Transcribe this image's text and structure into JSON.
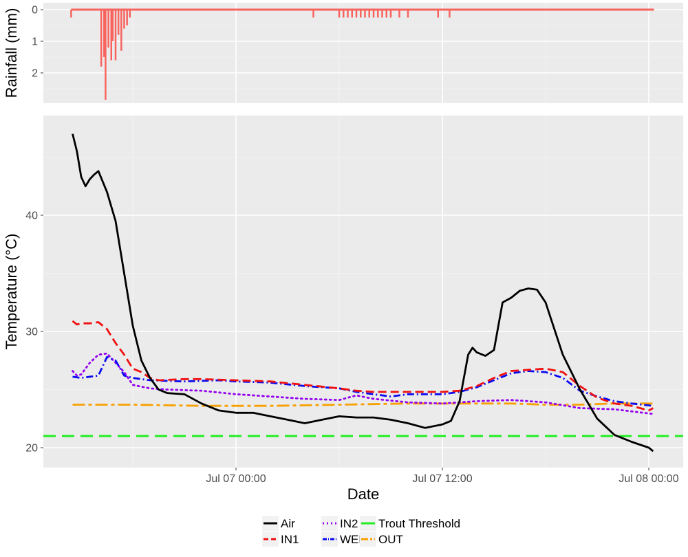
{
  "chart_data": {
    "type": "line",
    "xlabel": "Date",
    "x_ticks": [
      "Jul 07 00:00",
      "Jul 07 12:00",
      "Jul 08 00:00"
    ],
    "rainfall": {
      "ylabel": "Rainfall (mm)",
      "ylim": [
        2.85,
        0
      ],
      "y_ticks": [
        "0",
        "1",
        "2"
      ],
      "y_tick_values": [
        0,
        1,
        2
      ],
      "color": "#F8635E",
      "events": [
        {
          "t": "07-06 14:25",
          "mm": 0.25
        },
        {
          "t": "07-06 16:10",
          "mm": 1.8
        },
        {
          "t": "07-06 16:20",
          "mm": 1.5
        },
        {
          "t": "07-06 16:25",
          "mm": 2.85
        },
        {
          "t": "07-06 16:35",
          "mm": 1.2
        },
        {
          "t": "07-06 16:45",
          "mm": 1.6
        },
        {
          "t": "07-06 16:50",
          "mm": 1.0
        },
        {
          "t": "07-06 17:00",
          "mm": 1.6
        },
        {
          "t": "07-06 17:10",
          "mm": 0.8
        },
        {
          "t": "07-06 17:20",
          "mm": 1.3
        },
        {
          "t": "07-06 17:30",
          "mm": 0.6
        },
        {
          "t": "07-06 17:40",
          "mm": 0.5
        },
        {
          "t": "07-06 17:50",
          "mm": 0.25
        },
        {
          "t": "07-07 04:30",
          "mm": 0.25
        },
        {
          "t": "07-07 06:00",
          "mm": 0.25
        },
        {
          "t": "07-07 06:15",
          "mm": 0.25
        },
        {
          "t": "07-07 06:30",
          "mm": 0.25
        },
        {
          "t": "07-07 06:45",
          "mm": 0.25
        },
        {
          "t": "07-07 07:00",
          "mm": 0.25
        },
        {
          "t": "07-07 07:15",
          "mm": 0.25
        },
        {
          "t": "07-07 07:30",
          "mm": 0.25
        },
        {
          "t": "07-07 07:45",
          "mm": 0.25
        },
        {
          "t": "07-07 08:00",
          "mm": 0.25
        },
        {
          "t": "07-07 08:15",
          "mm": 0.25
        },
        {
          "t": "07-07 08:30",
          "mm": 0.25
        },
        {
          "t": "07-07 08:45",
          "mm": 0.25
        },
        {
          "t": "07-07 09:00",
          "mm": 0.25
        },
        {
          "t": "07-07 09:30",
          "mm": 0.25
        },
        {
          "t": "07-07 10:00",
          "mm": 0.25
        },
        {
          "t": "07-07 11:45",
          "mm": 0.25
        },
        {
          "t": "07-07 12:25",
          "mm": 0.25
        }
      ]
    },
    "temperature": {
      "ylabel": "Temperature (°C)",
      "ylim": [
        18.4,
        48.5
      ],
      "y_ticks": [
        "20",
        "30",
        "40"
      ],
      "y_tick_values": [
        20,
        30,
        40
      ],
      "threshold": {
        "name": "Trout Threshold",
        "value": 21,
        "color": "#22EE22"
      },
      "series": [
        {
          "name": "Air",
          "color": "#000000",
          "dash": "solid",
          "points": [
            [
              "07-06 14:30",
              47.0
            ],
            [
              "07-06 14:45",
              45.5
            ],
            [
              "07-06 15:00",
              43.3
            ],
            [
              "07-06 15:15",
              42.5
            ],
            [
              "07-06 15:30",
              43.1
            ],
            [
              "07-06 15:45",
              43.5
            ],
            [
              "07-06 16:00",
              43.8
            ],
            [
              "07-06 16:30",
              42.0
            ],
            [
              "07-06 17:00",
              39.5
            ],
            [
              "07-06 17:30",
              35.0
            ],
            [
              "07-06 18:00",
              30.5
            ],
            [
              "07-06 18:30",
              27.5
            ],
            [
              "07-06 19:00",
              26.0
            ],
            [
              "07-06 19:30",
              25.0
            ],
            [
              "07-06 20:00",
              24.7
            ],
            [
              "07-06 21:00",
              24.6
            ],
            [
              "07-06 22:00",
              23.8
            ],
            [
              "07-06 23:00",
              23.2
            ],
            [
              "07-07 00:00",
              23.0
            ],
            [
              "07-07 01:00",
              23.0
            ],
            [
              "07-07 02:00",
              22.7
            ],
            [
              "07-07 03:00",
              22.4
            ],
            [
              "07-07 04:00",
              22.1
            ],
            [
              "07-07 05:00",
              22.4
            ],
            [
              "07-07 06:00",
              22.7
            ],
            [
              "07-07 07:00",
              22.6
            ],
            [
              "07-07 08:00",
              22.6
            ],
            [
              "07-07 09:00",
              22.4
            ],
            [
              "07-07 10:00",
              22.1
            ],
            [
              "07-07 11:00",
              21.7
            ],
            [
              "07-07 12:00",
              22.0
            ],
            [
              "07-07 12:30",
              22.3
            ],
            [
              "07-07 13:00",
              24.0
            ],
            [
              "07-07 13:30",
              28.0
            ],
            [
              "07-07 13:45",
              28.6
            ],
            [
              "07-07 14:00",
              28.2
            ],
            [
              "07-07 14:30",
              27.9
            ],
            [
              "07-07 15:00",
              28.4
            ],
            [
              "07-07 15:30",
              32.5
            ],
            [
              "07-07 16:00",
              32.9
            ],
            [
              "07-07 16:30",
              33.5
            ],
            [
              "07-07 17:00",
              33.7
            ],
            [
              "07-07 17:30",
              33.6
            ],
            [
              "07-07 18:00",
              32.5
            ],
            [
              "07-07 19:00",
              28.0
            ],
            [
              "07-07 20:00",
              25.0
            ],
            [
              "07-07 21:00",
              22.5
            ],
            [
              "07-07 22:00",
              21.1
            ],
            [
              "07-07 23:00",
              20.5
            ],
            [
              "07-08 00:00",
              20.0
            ],
            [
              "07-08 00:15",
              19.7
            ]
          ]
        },
        {
          "name": "IN1",
          "color": "#F01010",
          "dash": "dashed",
          "points": [
            [
              "07-06 14:30",
              30.9
            ],
            [
              "07-06 14:45",
              30.6
            ],
            [
              "07-06 15:00",
              30.7
            ],
            [
              "07-06 15:30",
              30.7
            ],
            [
              "07-06 16:00",
              30.8
            ],
            [
              "07-06 16:30",
              30.2
            ],
            [
              "07-06 17:00",
              29.0
            ],
            [
              "07-06 17:30",
              28.0
            ],
            [
              "07-06 18:00",
              26.8
            ],
            [
              "07-06 18:30",
              26.5
            ],
            [
              "07-06 19:00",
              26.0
            ],
            [
              "07-06 19:30",
              25.8
            ],
            [
              "07-06 21:00",
              25.9
            ],
            [
              "07-06 22:00",
              25.9
            ],
            [
              "07-07 00:00",
              25.8
            ],
            [
              "07-07 02:00",
              25.7
            ],
            [
              "07-07 04:00",
              25.4
            ],
            [
              "07-07 06:00",
              25.1
            ],
            [
              "07-07 07:00",
              24.9
            ],
            [
              "07-07 08:00",
              24.8
            ],
            [
              "07-07 10:00",
              24.8
            ],
            [
              "07-07 12:00",
              24.8
            ],
            [
              "07-07 13:00",
              24.9
            ],
            [
              "07-07 14:00",
              25.3
            ],
            [
              "07-07 15:00",
              26.0
            ],
            [
              "07-07 16:00",
              26.6
            ],
            [
              "07-07 17:00",
              26.7
            ],
            [
              "07-07 18:00",
              26.8
            ],
            [
              "07-07 19:00",
              26.5
            ],
            [
              "07-07 20:00",
              25.3
            ],
            [
              "07-07 21:00",
              24.3
            ],
            [
              "07-07 22:00",
              23.8
            ],
            [
              "07-07 23:00",
              23.6
            ],
            [
              "07-08 00:00",
              23.2
            ],
            [
              "07-08 00:15",
              23.4
            ]
          ]
        },
        {
          "name": "IN2",
          "color": "#9400F0",
          "dash": "dotted",
          "points": [
            [
              "07-06 14:30",
              26.6
            ],
            [
              "07-06 14:45",
              26.2
            ],
            [
              "07-06 15:00",
              26.3
            ],
            [
              "07-06 15:30",
              27.3
            ],
            [
              "07-06 16:00",
              28.0
            ],
            [
              "07-06 16:30",
              28.1
            ],
            [
              "07-06 17:00",
              27.3
            ],
            [
              "07-06 17:30",
              26.5
            ],
            [
              "07-06 18:00",
              25.4
            ],
            [
              "07-06 19:00",
              25.1
            ],
            [
              "07-06 20:00",
              25.0
            ],
            [
              "07-06 22:00",
              24.9
            ],
            [
              "07-07 00:00",
              24.6
            ],
            [
              "07-07 02:00",
              24.4
            ],
            [
              "07-07 04:00",
              24.2
            ],
            [
              "07-07 06:00",
              24.1
            ],
            [
              "07-07 07:00",
              24.5
            ],
            [
              "07-07 08:00",
              24.2
            ],
            [
              "07-07 10:00",
              23.9
            ],
            [
              "07-07 12:00",
              23.8
            ],
            [
              "07-07 14:00",
              24.0
            ],
            [
              "07-07 16:00",
              24.1
            ],
            [
              "07-07 18:00",
              23.9
            ],
            [
              "07-07 20:00",
              23.4
            ],
            [
              "07-07 22:00",
              23.3
            ],
            [
              "07-08 00:15",
              22.9
            ]
          ]
        },
        {
          "name": "WELL",
          "color": "#0A0AF0",
          "dash": "dashdot",
          "points": [
            [
              "07-06 14:30",
              26.1
            ],
            [
              "07-06 15:00",
              26.0
            ],
            [
              "07-06 15:30",
              26.1
            ],
            [
              "07-06 16:00",
              26.2
            ],
            [
              "07-06 16:30",
              27.8
            ],
            [
              "07-06 17:00",
              27.5
            ],
            [
              "07-06 17:30",
              26.2
            ],
            [
              "07-06 18:00",
              26.0
            ],
            [
              "07-06 19:00",
              25.8
            ],
            [
              "07-06 21:00",
              25.7
            ],
            [
              "07-06 23:00",
              25.8
            ],
            [
              "07-07 00:00",
              25.7
            ],
            [
              "07-07 02:00",
              25.6
            ],
            [
              "07-07 04:00",
              25.3
            ],
            [
              "07-07 06:00",
              25.1
            ],
            [
              "07-07 07:00",
              24.8
            ],
            [
              "07-07 08:00",
              24.6
            ],
            [
              "07-07 09:00",
              24.4
            ],
            [
              "07-07 10:00",
              24.6
            ],
            [
              "07-07 12:00",
              24.6
            ],
            [
              "07-07 13:00",
              24.8
            ],
            [
              "07-07 14:00",
              25.2
            ],
            [
              "07-07 15:00",
              25.8
            ],
            [
              "07-07 16:00",
              26.4
            ],
            [
              "07-07 17:00",
              26.6
            ],
            [
              "07-07 18:00",
              26.5
            ],
            [
              "07-07 19:00",
              26.0
            ],
            [
              "07-07 20:00",
              24.9
            ],
            [
              "07-07 21:00",
              24.4
            ],
            [
              "07-07 22:00",
              24.0
            ],
            [
              "07-07 23:00",
              23.8
            ],
            [
              "07-08 00:15",
              23.6
            ]
          ]
        },
        {
          "name": "OUT",
          "color": "#F8A000",
          "dash": "longdash",
          "points": [
            [
              "07-06 14:30",
              23.7
            ],
            [
              "07-06 18:00",
              23.7
            ],
            [
              "07-06 22:00",
              23.6
            ],
            [
              "07-07 02:00",
              23.6
            ],
            [
              "07-07 06:00",
              23.7
            ],
            [
              "07-07 10:00",
              23.8
            ],
            [
              "07-07 12:00",
              23.8
            ],
            [
              "07-07 14:00",
              23.8
            ],
            [
              "07-07 16:00",
              23.8
            ],
            [
              "07-07 18:00",
              23.7
            ],
            [
              "07-07 20:00",
              23.7
            ],
            [
              "07-07 22:00",
              23.8
            ],
            [
              "07-08 00:15",
              23.8
            ]
          ]
        }
      ]
    },
    "legend": {
      "placement": "bottom",
      "entries": [
        {
          "label": "Air",
          "color": "#000000",
          "dash": "solid"
        },
        {
          "label": "IN1",
          "color": "#F01010",
          "dash": "dashed"
        },
        {
          "label": "IN2",
          "color": "#9400F0",
          "dash": "dotted"
        },
        {
          "label": "WELL",
          "color": "#0A0AF0",
          "dash": "dashdot"
        },
        {
          "label": "Trout Threshold",
          "color": "#22EE22",
          "dash": "solid"
        },
        {
          "label": "OUT",
          "color": "#F8A000",
          "dash": "longdash"
        }
      ]
    },
    "grid": true,
    "panel_background": "#EBEBEB"
  }
}
